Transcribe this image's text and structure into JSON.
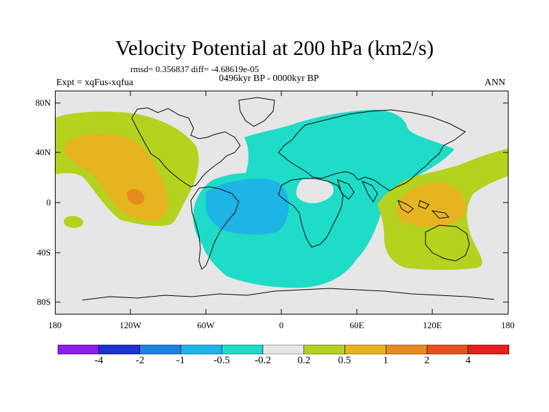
{
  "header": {
    "title": "Velocity Potential at 200 hPa (km2/s)",
    "stats": "rmsd= 0.356837 diff= -4.68619e-05",
    "period": "0496kyr BP - 0000kyr BP",
    "experiment": "Expt = xqFus-xqfua",
    "season": "ANN"
  },
  "axes": {
    "y_ticks": [
      "80N",
      "40N",
      "0",
      "40S",
      "80S"
    ],
    "x_ticks": [
      "180",
      "120W",
      "60W",
      "0",
      "60E",
      "120E",
      "180"
    ]
  },
  "colorbar": {
    "colors": [
      "#8c1ee6",
      "#1e32d2",
      "#1e82dc",
      "#1eb4e6",
      "#1edcc8",
      "#e6e6e6",
      "#b4d21e",
      "#e6b41e",
      "#e68c1e",
      "#e6501e",
      "#e61e1e"
    ],
    "labels": [
      "-4",
      "-2",
      "-1",
      "-0.5",
      "-0.2",
      "0.2",
      "0.5",
      "1",
      "2",
      "4"
    ]
  },
  "map": {
    "background_color": "#e6e6e6",
    "anomaly_regions": [
      {
        "name": "north-pacific-positive",
        "level": "0.2",
        "color": "#b4d21e"
      },
      {
        "name": "north-pacific-core",
        "level": "0.5",
        "color": "#e6b41e"
      },
      {
        "name": "pacific-max",
        "level": "1",
        "color": "#e68c1e"
      },
      {
        "name": "south-pacific-patch",
        "level": "0.2",
        "color": "#b4d21e"
      },
      {
        "name": "eurasia-atlantic-negative",
        "level": "-0.2",
        "color": "#1edcc8"
      },
      {
        "name": "south-atlantic-min",
        "level": "-0.5",
        "color": "#1eb4e6"
      },
      {
        "name": "west-pacific-positive",
        "level": "0.2",
        "color": "#b4d21e"
      },
      {
        "name": "maritime-continent-core",
        "level": "0.5",
        "color": "#e6b41e"
      }
    ]
  }
}
